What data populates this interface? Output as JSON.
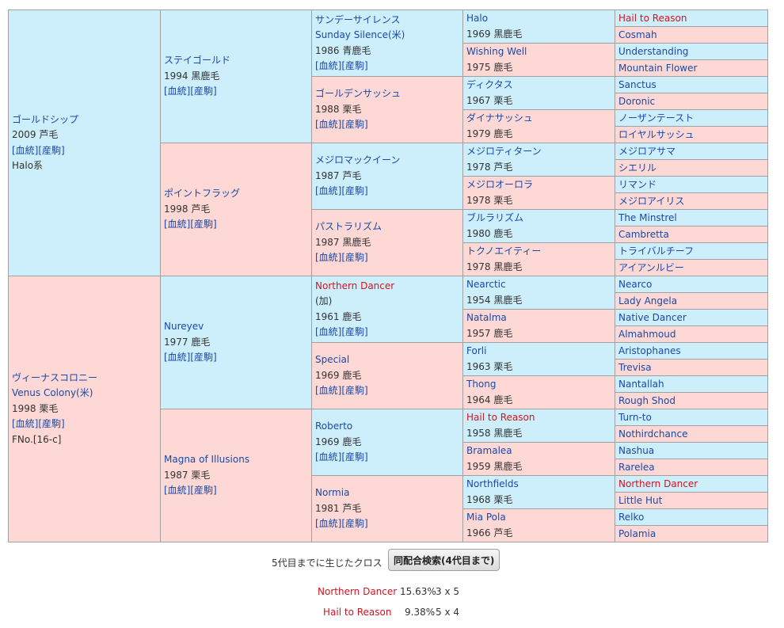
{
  "pedigree": [
    {
      "gen": 1,
      "row": 0,
      "span": 16,
      "sex": "m",
      "name": "ゴールドシップ",
      "extra": "",
      "year": "2009 芦毛",
      "blood": "[血統]",
      "fillies": "[産駒]",
      "sire_line": "Halo系",
      "family": "",
      "red": false
    },
    {
      "gen": 1,
      "row": 16,
      "span": 16,
      "sex": "f",
      "name": "ヴィーナスコロニー",
      "extra": "Venus Colony(米)",
      "year": "1998 栗毛",
      "blood": "[血統]",
      "fillies": "[産駒]",
      "sire_line": "",
      "family": "FNo.[16-c]",
      "red": false
    },
    {
      "gen": 2,
      "row": 0,
      "span": 8,
      "sex": "m",
      "name": "ステイゴールド",
      "extra": "",
      "year": "1994 黒鹿毛",
      "blood": "[血統]",
      "fillies": "[産駒]",
      "red": false
    },
    {
      "gen": 2,
      "row": 8,
      "span": 8,
      "sex": "f",
      "name": "ポイントフラッグ",
      "extra": "",
      "year": "1998 芦毛",
      "blood": "[血統]",
      "fillies": "[産駒]",
      "red": false
    },
    {
      "gen": 2,
      "row": 16,
      "span": 8,
      "sex": "m",
      "name": "Nureyev",
      "extra": "",
      "year": "1977 鹿毛",
      "blood": "[血統]",
      "fillies": "[産駒]",
      "red": false
    },
    {
      "gen": 2,
      "row": 24,
      "span": 8,
      "sex": "f",
      "name": "Magna of Illusions",
      "extra": "",
      "year": "1987 栗毛",
      "blood": "[血統]",
      "fillies": "[産駒]",
      "red": false
    },
    {
      "gen": 3,
      "row": 0,
      "span": 4,
      "sex": "m",
      "name": "サンデーサイレンス",
      "extra": "Sunday Silence(米)",
      "year": "1986 青鹿毛",
      "blood": "[血統]",
      "fillies": "[産駒]",
      "red": false
    },
    {
      "gen": 3,
      "row": 4,
      "span": 4,
      "sex": "f",
      "name": "ゴールデンサッシュ",
      "extra": "",
      "year": "1988 栗毛",
      "blood": "[血統]",
      "fillies": "[産駒]",
      "red": false
    },
    {
      "gen": 3,
      "row": 8,
      "span": 4,
      "sex": "m",
      "name": "メジロマックイーン",
      "extra": "",
      "year": "1987 芦毛",
      "blood": "[血統]",
      "fillies": "[産駒]",
      "red": false
    },
    {
      "gen": 3,
      "row": 12,
      "span": 4,
      "sex": "f",
      "name": "パストラリズム",
      "extra": "",
      "year": "1987 黒鹿毛",
      "blood": "[血統]",
      "fillies": "[産駒]",
      "red": false
    },
    {
      "gen": 3,
      "row": 16,
      "span": 4,
      "sex": "m",
      "name": "Northern Dancer",
      "extra": "(加)",
      "year": "1961 鹿毛",
      "blood": "[血統]",
      "fillies": "[産駒]",
      "red": true
    },
    {
      "gen": 3,
      "row": 20,
      "span": 4,
      "sex": "f",
      "name": "Special",
      "extra": "",
      "year": "1969 鹿毛",
      "blood": "[血統]",
      "fillies": "[産駒]",
      "red": false
    },
    {
      "gen": 3,
      "row": 24,
      "span": 4,
      "sex": "m",
      "name": "Roberto",
      "extra": "",
      "year": "1969 鹿毛",
      "blood": "[血統]",
      "fillies": "[産駒]",
      "red": false
    },
    {
      "gen": 3,
      "row": 28,
      "span": 4,
      "sex": "f",
      "name": "Normia",
      "extra": "",
      "year": "1981 芦毛",
      "blood": "[血統]",
      "fillies": "[産駒]",
      "red": false
    },
    {
      "gen": 4,
      "row": 0,
      "span": 2,
      "sex": "m",
      "name": "Halo",
      "year": "1969 黒鹿毛",
      "red": false
    },
    {
      "gen": 4,
      "row": 2,
      "span": 2,
      "sex": "f",
      "name": "Wishing Well",
      "year": "1975 鹿毛",
      "red": false
    },
    {
      "gen": 4,
      "row": 4,
      "span": 2,
      "sex": "m",
      "name": "ディクタス",
      "year": "1967 栗毛",
      "red": false
    },
    {
      "gen": 4,
      "row": 6,
      "span": 2,
      "sex": "f",
      "name": "ダイナサッシュ",
      "year": "1979 鹿毛",
      "red": false
    },
    {
      "gen": 4,
      "row": 8,
      "span": 2,
      "sex": "m",
      "name": "メジロティターン",
      "year": "1978 芦毛",
      "red": false
    },
    {
      "gen": 4,
      "row": 10,
      "span": 2,
      "sex": "f",
      "name": "メジロオーロラ",
      "year": "1978 栗毛",
      "red": false
    },
    {
      "gen": 4,
      "row": 12,
      "span": 2,
      "sex": "m",
      "name": "ブルラリズム",
      "year": "1980 鹿毛",
      "red": false
    },
    {
      "gen": 4,
      "row": 14,
      "span": 2,
      "sex": "f",
      "name": "トクノエイティー",
      "year": "1978 黒鹿毛",
      "red": false
    },
    {
      "gen": 4,
      "row": 16,
      "span": 2,
      "sex": "m",
      "name": "Nearctic",
      "year": "1954 黒鹿毛",
      "red": false
    },
    {
      "gen": 4,
      "row": 18,
      "span": 2,
      "sex": "f",
      "name": "Natalma",
      "year": "1957 鹿毛",
      "red": false
    },
    {
      "gen": 4,
      "row": 20,
      "span": 2,
      "sex": "m",
      "name": "Forli",
      "year": "1963 栗毛",
      "red": false
    },
    {
      "gen": 4,
      "row": 22,
      "span": 2,
      "sex": "f",
      "name": "Thong",
      "year": "1964 鹿毛",
      "red": false
    },
    {
      "gen": 4,
      "row": 24,
      "span": 2,
      "sex": "m",
      "name": "Hail to Reason",
      "year": "1958 黒鹿毛",
      "red": true
    },
    {
      "gen": 4,
      "row": 26,
      "span": 2,
      "sex": "f",
      "name": "Bramalea",
      "year": "1959 黒鹿毛",
      "red": false
    },
    {
      "gen": 4,
      "row": 28,
      "span": 2,
      "sex": "m",
      "name": "Northfields",
      "year": "1968 栗毛",
      "red": false
    },
    {
      "gen": 4,
      "row": 30,
      "span": 2,
      "sex": "f",
      "name": "Mia Pola",
      "year": "1966 芦毛",
      "red": false
    },
    {
      "gen": 5,
      "row": 0,
      "span": 1,
      "sex": "m",
      "name": "Hail to Reason",
      "red": true
    },
    {
      "gen": 5,
      "row": 1,
      "span": 1,
      "sex": "f",
      "name": "Cosmah",
      "red": false
    },
    {
      "gen": 5,
      "row": 2,
      "span": 1,
      "sex": "m",
      "name": "Understanding",
      "red": false
    },
    {
      "gen": 5,
      "row": 3,
      "span": 1,
      "sex": "f",
      "name": "Mountain Flower",
      "red": false
    },
    {
      "gen": 5,
      "row": 4,
      "span": 1,
      "sex": "m",
      "name": "Sanctus",
      "red": false
    },
    {
      "gen": 5,
      "row": 5,
      "span": 1,
      "sex": "f",
      "name": "Doronic",
      "red": false
    },
    {
      "gen": 5,
      "row": 6,
      "span": 1,
      "sex": "m",
      "name": "ノーザンテースト",
      "red": false
    },
    {
      "gen": 5,
      "row": 7,
      "span": 1,
      "sex": "f",
      "name": "ロイヤルサッシュ",
      "red": false
    },
    {
      "gen": 5,
      "row": 8,
      "span": 1,
      "sex": "m",
      "name": "メジロアサマ",
      "red": false
    },
    {
      "gen": 5,
      "row": 9,
      "span": 1,
      "sex": "f",
      "name": "シエリル",
      "red": false
    },
    {
      "gen": 5,
      "row": 10,
      "span": 1,
      "sex": "m",
      "name": "リマンド",
      "red": false
    },
    {
      "gen": 5,
      "row": 11,
      "span": 1,
      "sex": "f",
      "name": "メジロアイリス",
      "red": false
    },
    {
      "gen": 5,
      "row": 12,
      "span": 1,
      "sex": "m",
      "name": "The Minstrel",
      "red": false
    },
    {
      "gen": 5,
      "row": 13,
      "span": 1,
      "sex": "f",
      "name": "Cambretta",
      "red": false
    },
    {
      "gen": 5,
      "row": 14,
      "span": 1,
      "sex": "m",
      "name": "トライバルチーフ",
      "red": false
    },
    {
      "gen": 5,
      "row": 15,
      "span": 1,
      "sex": "f",
      "name": "アイアンルビー",
      "red": false
    },
    {
      "gen": 5,
      "row": 16,
      "span": 1,
      "sex": "m",
      "name": "Nearco",
      "red": false
    },
    {
      "gen": 5,
      "row": 17,
      "span": 1,
      "sex": "f",
      "name": "Lady Angela",
      "red": false
    },
    {
      "gen": 5,
      "row": 18,
      "span": 1,
      "sex": "m",
      "name": "Native Dancer",
      "red": false
    },
    {
      "gen": 5,
      "row": 19,
      "span": 1,
      "sex": "f",
      "name": "Almahmoud",
      "red": false
    },
    {
      "gen": 5,
      "row": 20,
      "span": 1,
      "sex": "m",
      "name": "Aristophanes",
      "red": false
    },
    {
      "gen": 5,
      "row": 21,
      "span": 1,
      "sex": "f",
      "name": "Trevisa",
      "red": false
    },
    {
      "gen": 5,
      "row": 22,
      "span": 1,
      "sex": "m",
      "name": "Nantallah",
      "red": false
    },
    {
      "gen": 5,
      "row": 23,
      "span": 1,
      "sex": "f",
      "name": "Rough Shod",
      "red": false
    },
    {
      "gen": 5,
      "row": 24,
      "span": 1,
      "sex": "m",
      "name": "Turn-to",
      "red": false
    },
    {
      "gen": 5,
      "row": 25,
      "span": 1,
      "sex": "f",
      "name": "Nothirdchance",
      "red": false
    },
    {
      "gen": 5,
      "row": 26,
      "span": 1,
      "sex": "m",
      "name": "Nashua",
      "red": false
    },
    {
      "gen": 5,
      "row": 27,
      "span": 1,
      "sex": "f",
      "name": "Rarelea",
      "red": false
    },
    {
      "gen": 5,
      "row": 28,
      "span": 1,
      "sex": "m",
      "name": "Northern Dancer",
      "red": true
    },
    {
      "gen": 5,
      "row": 29,
      "span": 1,
      "sex": "f",
      "name": "Little Hut",
      "red": false
    },
    {
      "gen": 5,
      "row": 30,
      "span": 1,
      "sex": "m",
      "name": "Relko",
      "red": false
    },
    {
      "gen": 5,
      "row": 31,
      "span": 1,
      "sex": "f",
      "name": "Polamia",
      "red": false
    }
  ],
  "footer": {
    "cross_label": "5代目までに生じたクロス",
    "search_button": "同配合検索(4代目まで)",
    "crosses": [
      {
        "name": "Northern Dancer",
        "pct": "15.63%",
        "gen": "3 x 5"
      },
      {
        "name": "Hail to Reason",
        "pct": "9.38%",
        "gen": "5 x 4"
      }
    ]
  },
  "colors": {
    "male_bg": "#cdeefb",
    "female_bg": "#fdd8d4",
    "link": "#1a49a8",
    "cross_red": "#d2141e"
  }
}
